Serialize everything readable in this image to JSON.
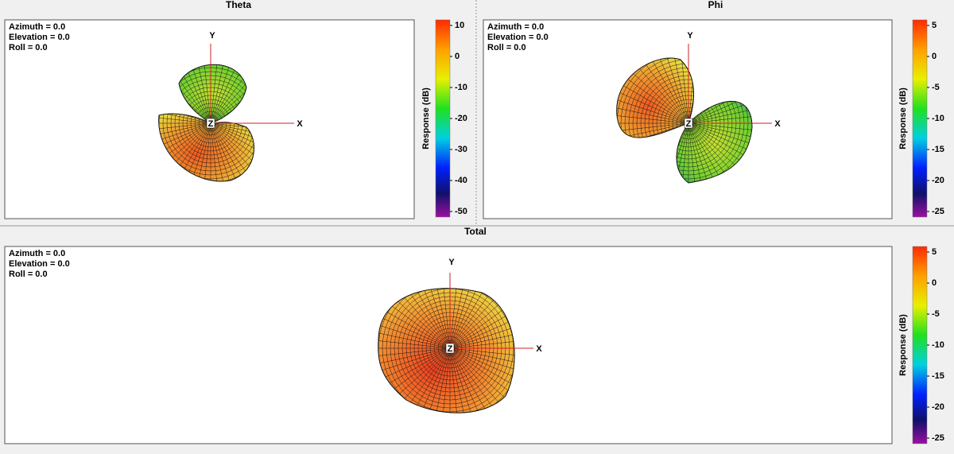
{
  "panels": [
    {
      "title": "Theta",
      "view": [
        "Azimuth = 0.0",
        "Elevation = 0.0",
        "Roll = 0.0"
      ],
      "axes": {
        "x": "X",
        "y": "Y",
        "z": "Z"
      },
      "colorbar": {
        "label": "Response (dB)",
        "ticks": [
          10,
          0,
          -10,
          -20,
          -30,
          -40,
          -50
        ]
      }
    },
    {
      "title": "Phi",
      "view": [
        "Azimuth = 0.0",
        "Elevation = 0.0",
        "Roll = 0.0"
      ],
      "axes": {
        "x": "X",
        "y": "Y",
        "z": "Z"
      },
      "colorbar": {
        "label": "Response (dB)",
        "ticks": [
          5,
          0,
          -5,
          -10,
          -15,
          -20,
          -25
        ]
      }
    },
    {
      "title": "Total",
      "view": [
        "Azimuth = 0.0",
        "Elevation = 0.0",
        "Roll = 0.0"
      ],
      "axes": {
        "x": "X",
        "y": "Y",
        "z": "Z"
      },
      "colorbar": {
        "label": "Response (dB)",
        "ticks": [
          5,
          0,
          -5,
          -10,
          -15,
          -20,
          -25
        ]
      }
    }
  ]
}
